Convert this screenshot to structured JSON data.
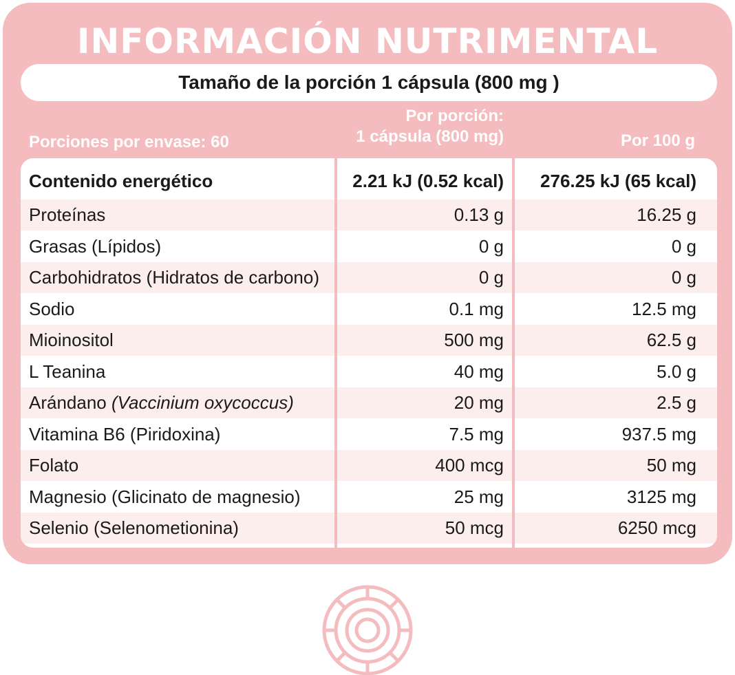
{
  "title": "INFORMACIÓN NUTRIMENTAL",
  "serving_size": "Tamaño de la porción 1 cápsula (800 mg )",
  "headers": {
    "servings_per_container": "Porciones por envase: 60",
    "per_serving_line1": "Por porción:",
    "per_serving_line2": "1 cápsula (800 mg)",
    "per_100g": "Por 100 g"
  },
  "rows": [
    {
      "name": "Contenido energético",
      "sci": "",
      "per_serving": "2.21 kJ (0.52 kcal)",
      "per_100g": "276.25 kJ (65 kcal)"
    },
    {
      "name": "Proteínas",
      "sci": "",
      "per_serving": "0.13 g",
      "per_100g": "16.25 g"
    },
    {
      "name": "Grasas (Lípidos)",
      "sci": "",
      "per_serving": "0 g",
      "per_100g": "0 g"
    },
    {
      "name": "Carbohidratos (Hidratos de carbono)",
      "sci": "",
      "per_serving": "0 g",
      "per_100g": "0 g"
    },
    {
      "name": "Sodio",
      "sci": "",
      "per_serving": "0.1 mg",
      "per_100g": "12.5 mg"
    },
    {
      "name": "Mioinositol",
      "sci": "",
      "per_serving": "500 mg",
      "per_100g": "62.5 g"
    },
    {
      "name": "L Teanina",
      "sci": "",
      "per_serving": "40 mg",
      "per_100g": "5.0 g"
    },
    {
      "name": "Arándano ",
      "sci": "(Vaccinium oxycoccus)",
      "per_serving": "20 mg",
      "per_100g": "2.5 g"
    },
    {
      "name": "Vitamina B6 (Piridoxina)",
      "sci": "",
      "per_serving": "7.5 mg",
      "per_100g": "937.5 mg"
    },
    {
      "name": "Folato",
      "sci": "",
      "per_serving": "400 mcg",
      "per_100g": "50 mg"
    },
    {
      "name": "Magnesio (Glicinato de magnesio)",
      "sci": "",
      "per_serving": "25 mg",
      "per_100g": "3125 mg"
    },
    {
      "name": "Selenio (Selenometionina)",
      "sci": "",
      "per_serving": "50 mcg",
      "per_100g": "6250 mcg"
    }
  ],
  "colors": {
    "accent": "#f4bcbe",
    "row_alt": "#fdeeee"
  },
  "logo_icon": "circular-emblem-icon"
}
